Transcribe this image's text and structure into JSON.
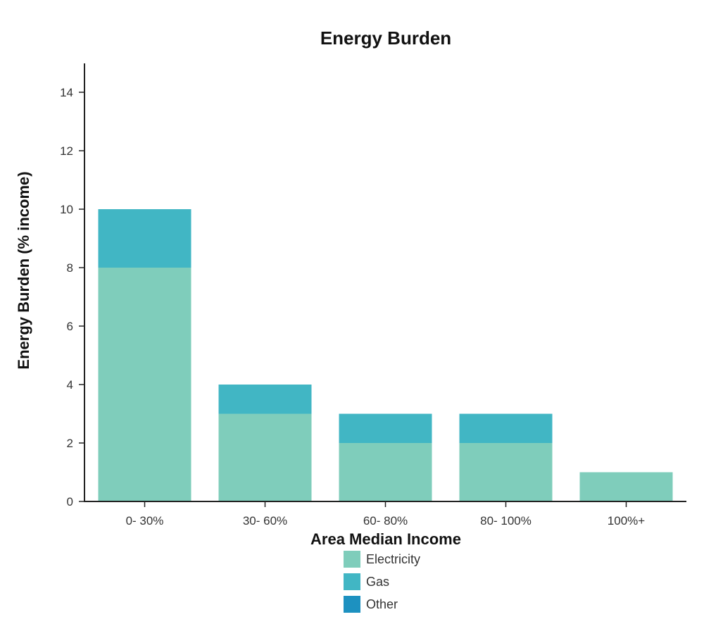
{
  "chart_data": {
    "type": "bar",
    "stacked": true,
    "title": "Energy Burden",
    "xlabel": "Area Median Income",
    "ylabel": "Energy Burden (% income)",
    "categories": [
      "0- 30%",
      "30- 60%",
      "60- 80%",
      "80- 100%",
      "100%+"
    ],
    "series": [
      {
        "name": "Electricity",
        "values": [
          8,
          3,
          2,
          2,
          1
        ],
        "color": "#7fcdbb"
      },
      {
        "name": "Gas",
        "values": [
          2,
          1,
          1,
          1,
          0
        ],
        "color": "#41b6c4"
      },
      {
        "name": "Other",
        "values": [
          0,
          0,
          0,
          0,
          0
        ],
        "color": "#1d91c0"
      }
    ],
    "ylim": [
      0,
      15
    ],
    "yticks": [
      0,
      2,
      4,
      6,
      8,
      10,
      12,
      14
    ],
    "grid": false,
    "legend_position": "bottom"
  }
}
